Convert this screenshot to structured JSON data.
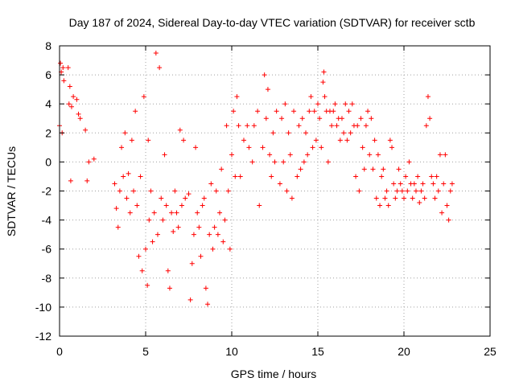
{
  "chart_data": {
    "type": "scatter",
    "title": "Day 187 of 2024, Sidereal Day-to-day VTEC variation (SDTVAR) for receiver sctb",
    "xlabel": "GPS time / hours",
    "ylabel": "SDTVAR / TECUs",
    "xlim": [
      0,
      25
    ],
    "ylim": [
      -12,
      8
    ],
    "xticks": [
      0,
      5,
      10,
      15,
      20,
      25
    ],
    "yticks": [
      -12,
      -10,
      -8,
      -6,
      -4,
      -2,
      0,
      2,
      4,
      6,
      8
    ],
    "grid": true,
    "marker": "+",
    "series": [
      {
        "name": "SDTVAR",
        "color": "#ff0000",
        "points": [
          [
            0.0,
            2.5
          ],
          [
            0.05,
            6.8
          ],
          [
            0.1,
            6.2
          ],
          [
            0.15,
            2.0
          ],
          [
            0.2,
            6.5
          ],
          [
            0.25,
            5.6
          ],
          [
            0.5,
            6.5
          ],
          [
            0.55,
            4.0
          ],
          [
            0.6,
            5.2
          ],
          [
            0.65,
            -1.3
          ],
          [
            0.7,
            3.8
          ],
          [
            0.8,
            4.5
          ],
          [
            1.0,
            4.3
          ],
          [
            1.1,
            3.3
          ],
          [
            1.2,
            3.0
          ],
          [
            1.5,
            2.2
          ],
          [
            1.6,
            -1.3
          ],
          [
            1.7,
            0.0
          ],
          [
            2.0,
            0.2
          ],
          [
            3.2,
            -1.5
          ],
          [
            3.3,
            -3.2
          ],
          [
            3.4,
            -4.5
          ],
          [
            3.5,
            -2.0
          ],
          [
            3.6,
            1.0
          ],
          [
            3.7,
            -1.0
          ],
          [
            3.8,
            2.0
          ],
          [
            3.9,
            -2.5
          ],
          [
            4.0,
            -0.8
          ],
          [
            4.1,
            -3.5
          ],
          [
            4.2,
            1.5
          ],
          [
            4.3,
            -2.0
          ],
          [
            4.4,
            3.5
          ],
          [
            4.5,
            -3.0
          ],
          [
            4.6,
            -6.5
          ],
          [
            4.7,
            -1.0
          ],
          [
            4.8,
            -7.5
          ],
          [
            4.9,
            4.5
          ],
          [
            5.0,
            -6.0
          ],
          [
            5.1,
            -8.5
          ],
          [
            5.15,
            1.5
          ],
          [
            5.2,
            -4.0
          ],
          [
            5.3,
            -2.0
          ],
          [
            5.4,
            -5.5
          ],
          [
            5.5,
            -3.5
          ],
          [
            5.6,
            7.5
          ],
          [
            5.7,
            -5.0
          ],
          [
            5.8,
            6.5
          ],
          [
            5.9,
            -2.5
          ],
          [
            6.0,
            -4.0
          ],
          [
            6.1,
            0.5
          ],
          [
            6.2,
            -3.0
          ],
          [
            6.3,
            -7.5
          ],
          [
            6.4,
            -8.7
          ],
          [
            6.5,
            -3.5
          ],
          [
            6.6,
            -4.8
          ],
          [
            6.7,
            -2.0
          ],
          [
            6.8,
            -3.5
          ],
          [
            6.9,
            -4.5
          ],
          [
            7.0,
            2.2
          ],
          [
            7.1,
            -3.0
          ],
          [
            7.2,
            1.5
          ],
          [
            7.3,
            -2.5
          ],
          [
            7.5,
            -2.2
          ],
          [
            7.6,
            -9.5
          ],
          [
            7.7,
            -7.0
          ],
          [
            7.8,
            -5.0
          ],
          [
            7.9,
            1.0
          ],
          [
            8.0,
            -3.5
          ],
          [
            8.1,
            -4.5
          ],
          [
            8.2,
            -6.5
          ],
          [
            8.3,
            -3.0
          ],
          [
            8.4,
            -2.5
          ],
          [
            8.5,
            -8.7
          ],
          [
            8.6,
            -9.8
          ],
          [
            8.7,
            -5.0
          ],
          [
            8.8,
            -1.5
          ],
          [
            8.9,
            -6.0
          ],
          [
            9.0,
            -4.5
          ],
          [
            9.1,
            -2.0
          ],
          [
            9.2,
            -5.0
          ],
          [
            9.3,
            -3.5
          ],
          [
            9.4,
            -0.5
          ],
          [
            9.5,
            -5.5
          ],
          [
            9.6,
            -4.0
          ],
          [
            9.7,
            2.5
          ],
          [
            9.8,
            -2.0
          ],
          [
            9.9,
            -6.0
          ],
          [
            10.0,
            0.5
          ],
          [
            10.1,
            3.5
          ],
          [
            10.2,
            -1.0
          ],
          [
            10.3,
            4.5
          ],
          [
            10.4,
            2.5
          ],
          [
            10.5,
            -1.0
          ],
          [
            10.7,
            1.5
          ],
          [
            10.9,
            2.5
          ],
          [
            11.0,
            1.0
          ],
          [
            11.2,
            0.0
          ],
          [
            11.3,
            2.5
          ],
          [
            11.5,
            3.5
          ],
          [
            11.6,
            -3.0
          ],
          [
            11.8,
            1.0
          ],
          [
            11.9,
            6.0
          ],
          [
            12.0,
            3.0
          ],
          [
            12.1,
            5.0
          ],
          [
            12.2,
            0.5
          ],
          [
            12.3,
            -1.0
          ],
          [
            12.4,
            2.0
          ],
          [
            12.5,
            0.0
          ],
          [
            12.6,
            3.5
          ],
          [
            12.8,
            -1.5
          ],
          [
            12.9,
            3.0
          ],
          [
            13.0,
            0.0
          ],
          [
            13.1,
            4.0
          ],
          [
            13.2,
            -2.0
          ],
          [
            13.3,
            2.0
          ],
          [
            13.4,
            0.5
          ],
          [
            13.5,
            -2.5
          ],
          [
            13.6,
            3.5
          ],
          [
            13.8,
            -1.0
          ],
          [
            13.9,
            2.5
          ],
          [
            14.0,
            -0.5
          ],
          [
            14.1,
            3.0
          ],
          [
            14.2,
            0.0
          ],
          [
            14.3,
            2.0
          ],
          [
            14.4,
            0.5
          ],
          [
            14.5,
            3.5
          ],
          [
            14.6,
            4.5
          ],
          [
            14.7,
            1.0
          ],
          [
            14.8,
            3.5
          ],
          [
            14.9,
            1.5
          ],
          [
            15.0,
            4.0
          ],
          [
            15.1,
            3.0
          ],
          [
            15.2,
            1.0
          ],
          [
            15.3,
            5.5
          ],
          [
            15.35,
            6.2
          ],
          [
            15.4,
            4.5
          ],
          [
            15.5,
            3.5
          ],
          [
            15.6,
            0.0
          ],
          [
            15.7,
            3.5
          ],
          [
            15.8,
            2.5
          ],
          [
            15.9,
            3.5
          ],
          [
            16.0,
            4.0
          ],
          [
            16.1,
            2.5
          ],
          [
            16.2,
            3.0
          ],
          [
            16.3,
            1.5
          ],
          [
            16.4,
            3.0
          ],
          [
            16.5,
            2.0
          ],
          [
            16.6,
            4.0
          ],
          [
            16.7,
            1.5
          ],
          [
            16.8,
            3.5
          ],
          [
            16.9,
            2.0
          ],
          [
            17.0,
            4.0
          ],
          [
            17.1,
            2.5
          ],
          [
            17.2,
            -1.0
          ],
          [
            17.3,
            2.5
          ],
          [
            17.4,
            -2.0
          ],
          [
            17.5,
            3.0
          ],
          [
            17.6,
            1.0
          ],
          [
            17.7,
            -0.5
          ],
          [
            17.8,
            2.5
          ],
          [
            17.9,
            3.5
          ],
          [
            18.0,
            0.5
          ],
          [
            18.1,
            3.0
          ],
          [
            18.2,
            -0.5
          ],
          [
            18.3,
            1.5
          ],
          [
            18.4,
            -2.5
          ],
          [
            18.5,
            0.5
          ],
          [
            18.6,
            -3.0
          ],
          [
            18.7,
            -1.0
          ],
          [
            18.8,
            -0.5
          ],
          [
            18.9,
            -2.5
          ],
          [
            19.0,
            -2.0
          ],
          [
            19.1,
            -3.0
          ],
          [
            19.2,
            1.5
          ],
          [
            19.3,
            1.0
          ],
          [
            19.4,
            -1.5
          ],
          [
            19.5,
            -2.5
          ],
          [
            19.6,
            -2.0
          ],
          [
            19.7,
            -0.5
          ],
          [
            19.8,
            -1.5
          ],
          [
            19.9,
            -2.0
          ],
          [
            20.0,
            -2.5
          ],
          [
            20.1,
            -1.0
          ],
          [
            20.2,
            -2.0
          ],
          [
            20.3,
            0.0
          ],
          [
            20.4,
            -1.5
          ],
          [
            20.5,
            -2.5
          ],
          [
            20.6,
            -1.5
          ],
          [
            20.7,
            -2.0
          ],
          [
            20.8,
            -1.0
          ],
          [
            20.9,
            -2.8
          ],
          [
            21.0,
            -2.0
          ],
          [
            21.1,
            -1.5
          ],
          [
            21.2,
            -2.5
          ],
          [
            21.3,
            2.5
          ],
          [
            21.4,
            4.5
          ],
          [
            21.5,
            3.0
          ],
          [
            21.6,
            -1.0
          ],
          [
            21.7,
            -1.5
          ],
          [
            21.8,
            -2.5
          ],
          [
            21.9,
            -1.0
          ],
          [
            22.0,
            -2.0
          ],
          [
            22.1,
            0.5
          ],
          [
            22.2,
            -3.5
          ],
          [
            22.3,
            -1.5
          ],
          [
            22.4,
            0.5
          ],
          [
            22.5,
            -3.0
          ],
          [
            22.6,
            -4.0
          ],
          [
            22.7,
            -2.0
          ],
          [
            22.8,
            -1.5
          ]
        ]
      }
    ]
  }
}
